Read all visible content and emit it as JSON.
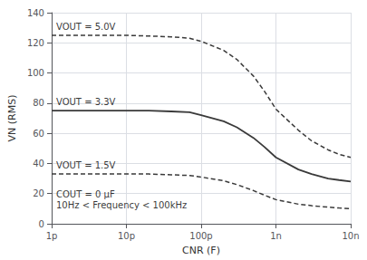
{
  "chart_data": {
    "type": "line",
    "xlabel": "CNR (F)",
    "ylabel": "VN (RMS)",
    "log": "x",
    "grid": true,
    "xlim": [
      1e-12,
      1e-08
    ],
    "ylim": [
      0,
      140
    ],
    "xticks": [
      {
        "value": 1e-12,
        "label": "1p"
      },
      {
        "value": 1e-11,
        "label": "10p"
      },
      {
        "value": 1e-10,
        "label": "100p"
      },
      {
        "value": 1e-09,
        "label": "1n"
      },
      {
        "value": 1e-08,
        "label": "10n"
      }
    ],
    "yticks": [
      0,
      20,
      40,
      60,
      80,
      100,
      120,
      140
    ],
    "x": [
      1e-12,
      2e-12,
      4e-12,
      7e-12,
      1e-11,
      2e-11,
      4e-11,
      7e-11,
      1e-10,
      2e-10,
      3e-10,
      5e-10,
      7e-10,
      1e-09,
      2e-09,
      3e-09,
      5e-09,
      7e-09,
      1e-08
    ],
    "series": [
      {
        "color": "#3a3a3a",
        "line_style": "dashed",
        "values": [
          125,
          125,
          125,
          125,
          125,
          124.5,
          124,
          123,
          121,
          115,
          109,
          98,
          88,
          76,
          62,
          55,
          49,
          46,
          44
        ]
      },
      {
        "color": "#3a3a3a",
        "line_style": "solid",
        "values": [
          75,
          75,
          75,
          75,
          75,
          75,
          74.5,
          74,
          72,
          68,
          64,
          57,
          51,
          44,
          36,
          33,
          30,
          29,
          28
        ]
      },
      {
        "color": "#3a3a3a",
        "line_style": "dashed",
        "values": [
          33,
          33,
          33,
          33,
          33,
          33,
          32.5,
          32,
          31,
          28.5,
          26,
          22,
          19,
          16,
          13,
          12,
          11,
          10.5,
          10
        ]
      }
    ],
    "annotations": [
      {
        "text": "VOUT = 5.0V",
        "x": 1.15e-12,
        "y": 127
      },
      {
        "text": "VOUT = 3.3V",
        "x": 1.15e-12,
        "y": 77
      },
      {
        "text": "VOUT = 1.5V",
        "x": 1.15e-12,
        "y": 35
      },
      {
        "text": "COUT = 0 μF\n10Hz < Frequency < 100kHz",
        "x": 1.15e-12,
        "y": 9
      }
    ]
  }
}
